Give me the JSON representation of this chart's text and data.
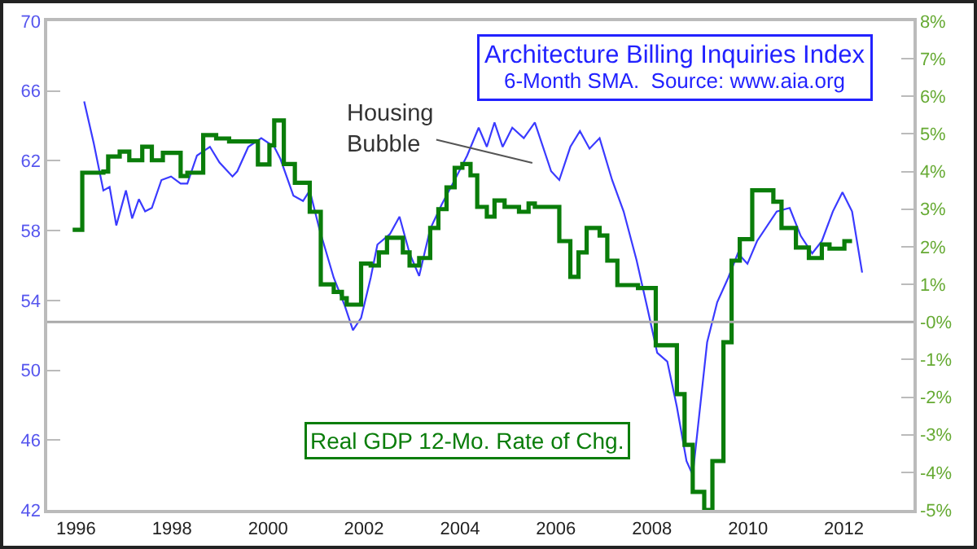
{
  "chart_data": {
    "type": "line",
    "title": "Architecture Billing Inquiries Index",
    "subtitle": "6-Month SMA.  Source: www.aia.org",
    "xlim": [
      1995.4,
      2013.45
    ],
    "xticks": [
      1996,
      1998,
      2000,
      2002,
      2004,
      2006,
      2008,
      2010,
      2012
    ],
    "ylim": [
      42,
      70
    ],
    "yticks": [
      42,
      46,
      50,
      54,
      58,
      62,
      66,
      70
    ],
    "y2lim": [
      -5,
      8
    ],
    "y2ticks": [
      {
        "value": -5,
        "label": "-5%"
      },
      {
        "value": -4,
        "label": "-4%"
      },
      {
        "value": -3,
        "label": "-3%"
      },
      {
        "value": -2,
        "label": "-2%"
      },
      {
        "value": -1,
        "label": "-1%"
      },
      {
        "value": 0,
        "label": "-0%"
      },
      {
        "value": 1,
        "label": "1%"
      },
      {
        "value": 2,
        "label": "2%"
      },
      {
        "value": 3,
        "label": "3%"
      },
      {
        "value": 4,
        "label": "4%"
      },
      {
        "value": 5,
        "label": "5%"
      },
      {
        "value": 6,
        "label": "6%"
      },
      {
        "value": 7,
        "label": "7%"
      },
      {
        "value": 8,
        "label": "8%"
      }
    ],
    "grid": false,
    "legend": false,
    "series": [
      {
        "color": "#3a3aff",
        "x": [
          1996.17,
          1996.37,
          1996.57,
          1996.7,
          1996.84,
          1997.04,
          1997.17,
          1997.31,
          1997.44,
          1997.58,
          1997.78,
          1997.98,
          1998.18,
          1998.32,
          1998.52,
          1998.79,
          1998.99,
          1999.26,
          1999.36,
          1999.59,
          1999.86,
          2000.13,
          2000.26,
          2000.53,
          2000.73,
          2000.87,
          2001.07,
          2001.37,
          2001.6,
          2001.77,
          2001.94,
          2002.14,
          2002.28,
          2002.54,
          2002.74,
          2002.95,
          2003.15,
          2003.38,
          2003.62,
          2003.89,
          2004.15,
          2004.39,
          2004.56,
          2004.72,
          2004.89,
          2005.09,
          2005.33,
          2005.56,
          2005.9,
          2006.07,
          2006.3,
          2006.5,
          2006.7,
          2006.91,
          2007.17,
          2007.41,
          2007.68,
          2007.91,
          2008.11,
          2008.32,
          2008.52,
          2008.72,
          2008.85,
          2009.15,
          2009.36,
          2009.59,
          2009.79,
          2009.99,
          2010.19,
          2010.6,
          2010.87,
          2011.1,
          2011.34,
          2011.54,
          2011.77,
          2011.97,
          2012.17,
          2012.38
        ],
        "values": [
          65.4,
          63.0,
          60.3,
          60.5,
          58.3,
          60.3,
          58.7,
          59.8,
          59.1,
          59.3,
          60.9,
          61.1,
          60.7,
          60.7,
          62.3,
          62.8,
          61.9,
          61.1,
          61.4,
          62.8,
          63.3,
          62.8,
          62.1,
          60.0,
          59.7,
          60.3,
          58.1,
          55.3,
          53.7,
          52.3,
          53.0,
          55.3,
          57.2,
          57.8,
          58.8,
          56.7,
          55.4,
          58.1,
          59.5,
          60.9,
          62.3,
          63.9,
          62.8,
          64.2,
          62.8,
          63.9,
          63.3,
          64.2,
          61.4,
          60.9,
          62.8,
          63.7,
          62.7,
          63.3,
          60.9,
          59.1,
          56.3,
          53.5,
          51.0,
          50.5,
          47.9,
          44.8,
          44.0,
          51.6,
          53.9,
          55.3,
          56.7,
          56.1,
          57.4,
          59.1,
          59.3,
          57.7,
          56.7,
          57.4,
          59.1,
          60.2,
          59.1,
          55.6
        ]
      },
      {
        "type": "step",
        "axis": "y2",
        "name": "Real GDP 12-Mo. Rate of Chg.",
        "color": "#0a7d0a",
        "x": [
          1995.93,
          1996.13,
          1996.57,
          1996.67,
          1996.91,
          1997.11,
          1997.38,
          1997.58,
          1997.81,
          1998.18,
          1998.32,
          1998.65,
          1998.92,
          1999.19,
          1999.79,
          2000.03,
          2000.13,
          2000.33,
          2000.56,
          2000.87,
          2001.1,
          2001.37,
          2001.54,
          2001.64,
          2001.94,
          2002.14,
          2002.31,
          2002.48,
          2002.81,
          2002.95,
          2003.15,
          2003.38,
          2003.55,
          2003.72,
          2003.89,
          2004.05,
          2004.22,
          2004.36,
          2004.56,
          2004.72,
          2004.93,
          2005.23,
          2005.43,
          2005.56,
          2006.07,
          2006.3,
          2006.47,
          2006.64,
          2006.91,
          2007.07,
          2007.28,
          2007.71,
          2008.08,
          2008.52,
          2008.68,
          2008.85,
          2009.09,
          2009.26,
          2009.49,
          2009.66,
          2009.83,
          2010.09,
          2010.53,
          2010.7,
          2011.0,
          2011.27,
          2011.54,
          2011.7,
          2012.01,
          2012.17
        ],
        "values": [
          2.45,
          3.97,
          4.0,
          4.4,
          4.53,
          4.3,
          4.66,
          4.3,
          4.5,
          3.88,
          3.97,
          4.97,
          4.88,
          4.8,
          4.19,
          4.7,
          5.36,
          4.2,
          3.7,
          2.93,
          1.0,
          0.8,
          0.63,
          0.46,
          1.55,
          1.5,
          1.85,
          2.24,
          1.85,
          1.5,
          1.7,
          2.5,
          3.0,
          3.58,
          4.1,
          4.2,
          3.9,
          3.06,
          2.8,
          3.23,
          3.06,
          2.93,
          3.15,
          3.06,
          2.15,
          1.2,
          1.85,
          2.5,
          2.3,
          1.63,
          0.98,
          0.9,
          -0.62,
          -1.92,
          -3.27,
          -4.52,
          -5,
          -3.7,
          -0.54,
          1.63,
          2.2,
          3.5,
          3.2,
          2.5,
          1.98,
          1.7,
          2.06,
          1.95,
          2.15,
          2.15
        ]
      }
    ],
    "ref_lines": [
      {
        "axis": "y2",
        "value": 0,
        "color": "#aaaaaa"
      }
    ],
    "annotations": [
      "Housing\nBubble"
    ]
  }
}
